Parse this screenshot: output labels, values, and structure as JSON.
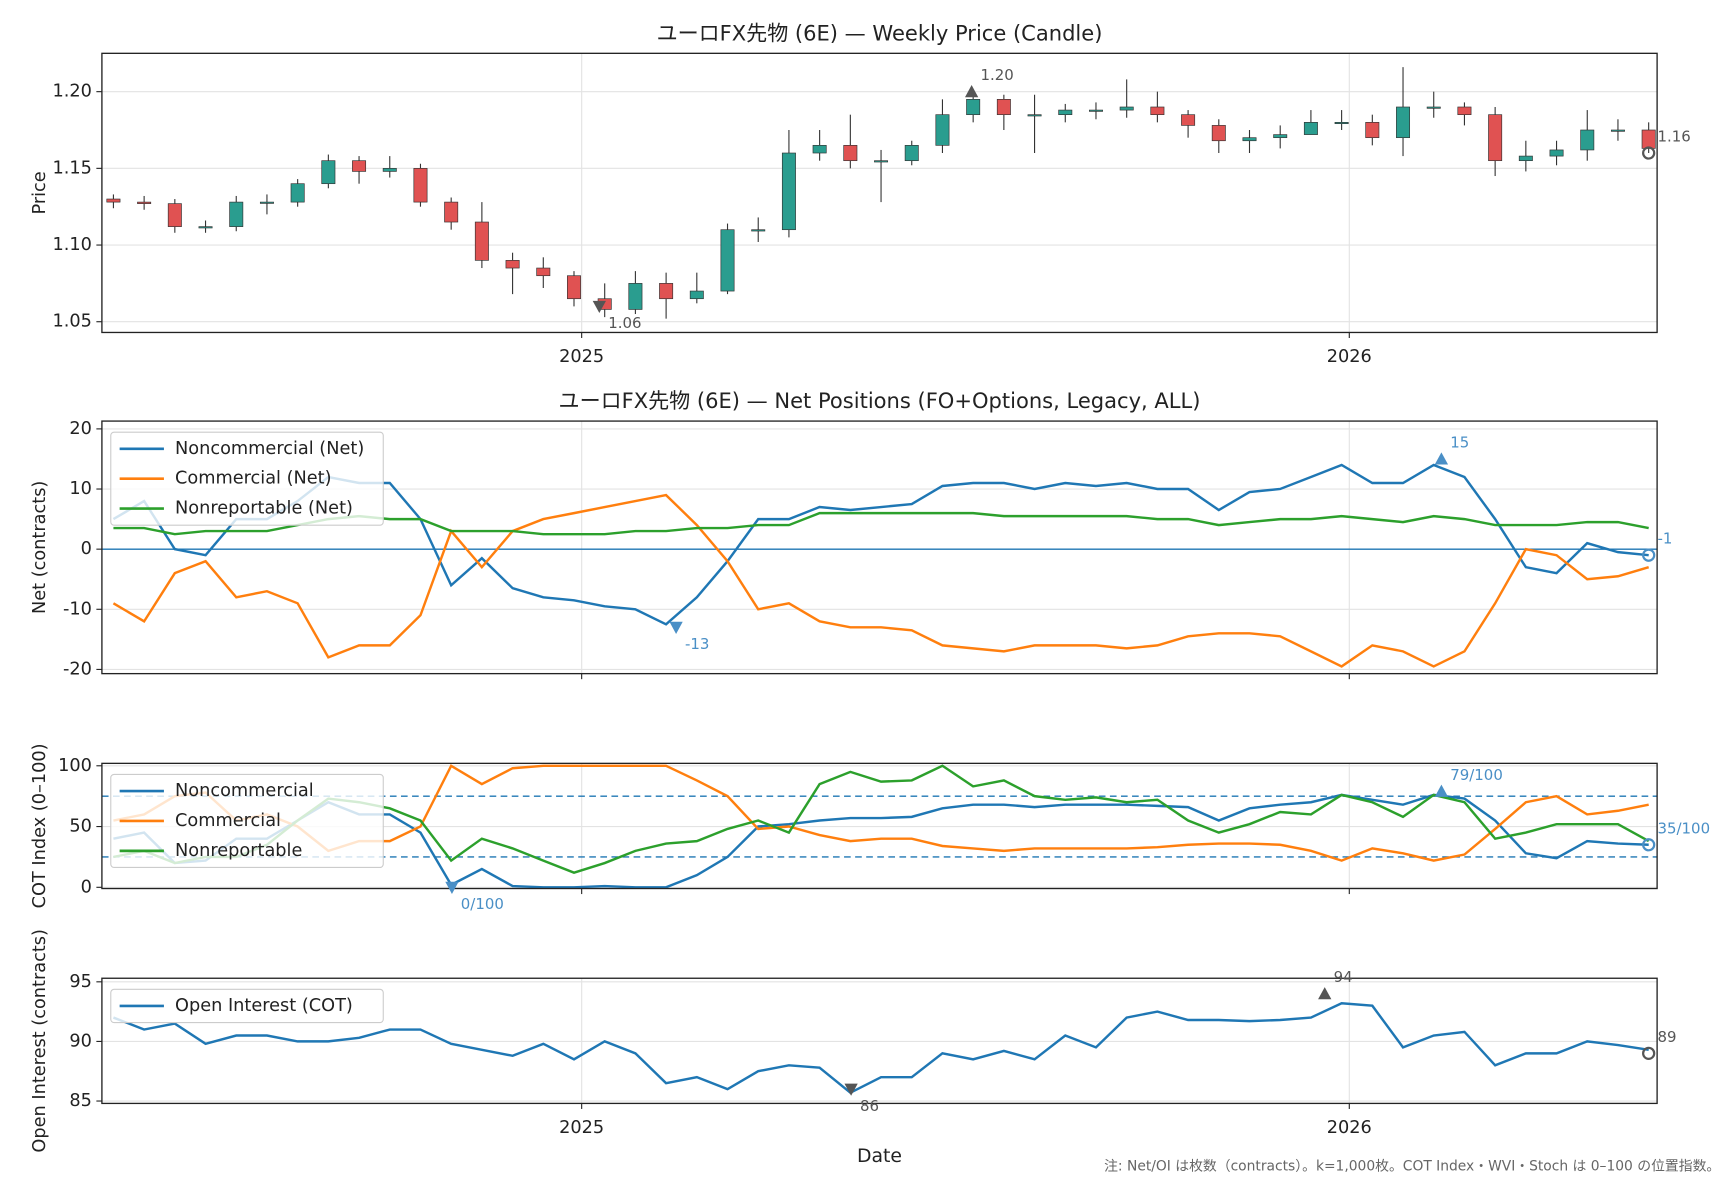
{
  "chart_data": [
    {
      "type": "candlestick",
      "title": "ユーロFX先物 (6E) — Weekly Price (Candle)",
      "y_label": "Price",
      "x": [
        2024.39,
        2024.43,
        2024.47,
        2024.51,
        2024.55,
        2024.59,
        2024.63,
        2024.67,
        2024.71,
        2024.75,
        2024.79,
        2024.83,
        2024.87,
        2024.91,
        2024.95,
        2024.99,
        2025.03,
        2025.07,
        2025.11,
        2025.15,
        2025.19,
        2025.23,
        2025.27,
        2025.31,
        2025.35,
        2025.39,
        2025.43,
        2025.47,
        2025.51,
        2025.55,
        2025.59,
        2025.63,
        2025.67,
        2025.71,
        2025.75,
        2025.79,
        2025.83,
        2025.87,
        2025.91,
        2025.95,
        2025.99,
        2026.03,
        2026.07,
        2026.11,
        2026.15,
        2026.19,
        2026.23,
        2026.27,
        2026.31,
        2026.35,
        2026.39
      ],
      "open": [
        1.13,
        1.128,
        1.127,
        1.112,
        1.112,
        1.128,
        1.128,
        1.14,
        1.155,
        1.148,
        1.15,
        1.128,
        1.115,
        1.09,
        1.085,
        1.08,
        1.065,
        1.058,
        1.075,
        1.065,
        1.07,
        1.11,
        1.11,
        1.16,
        1.165,
        1.155,
        1.155,
        1.165,
        1.185,
        1.195,
        1.185,
        1.185,
        1.188,
        1.188,
        1.19,
        1.185,
        1.178,
        1.168,
        1.17,
        1.172,
        1.18,
        1.18,
        1.17,
        1.19,
        1.19,
        1.185,
        1.155,
        1.158,
        1.162,
        1.175,
        1.175
      ],
      "high": [
        1.133,
        1.132,
        1.13,
        1.116,
        1.132,
        1.133,
        1.143,
        1.159,
        1.158,
        1.158,
        1.153,
        1.131,
        1.128,
        1.095,
        1.092,
        1.083,
        1.075,
        1.083,
        1.082,
        1.082,
        1.114,
        1.118,
        1.175,
        1.175,
        1.185,
        1.162,
        1.168,
        1.195,
        1.2,
        1.198,
        1.198,
        1.192,
        1.193,
        1.208,
        1.2,
        1.188,
        1.182,
        1.175,
        1.178,
        1.188,
        1.188,
        1.185,
        1.216,
        1.2,
        1.193,
        1.19,
        1.168,
        1.168,
        1.188,
        1.182,
        1.18
      ],
      "low": [
        1.124,
        1.123,
        1.108,
        1.108,
        1.109,
        1.12,
        1.125,
        1.137,
        1.14,
        1.144,
        1.125,
        1.11,
        1.085,
        1.068,
        1.072,
        1.06,
        1.053,
        1.055,
        1.052,
        1.062,
        1.068,
        1.102,
        1.105,
        1.155,
        1.15,
        1.128,
        1.152,
        1.16,
        1.18,
        1.175,
        1.16,
        1.18,
        1.182,
        1.183,
        1.18,
        1.17,
        1.16,
        1.16,
        1.163,
        1.172,
        1.175,
        1.165,
        1.158,
        1.183,
        1.178,
        1.145,
        1.148,
        1.152,
        1.155,
        1.168,
        1.16
      ],
      "close": [
        1.128,
        1.127,
        1.112,
        1.112,
        1.128,
        1.128,
        1.14,
        1.155,
        1.148,
        1.15,
        1.128,
        1.115,
        1.09,
        1.085,
        1.08,
        1.065,
        1.058,
        1.075,
        1.065,
        1.07,
        1.11,
        1.11,
        1.16,
        1.165,
        1.155,
        1.155,
        1.165,
        1.185,
        1.195,
        1.185,
        1.185,
        1.188,
        1.188,
        1.19,
        1.185,
        1.178,
        1.168,
        1.17,
        1.172,
        1.18,
        1.18,
        1.17,
        1.19,
        1.19,
        1.185,
        1.155,
        1.158,
        1.162,
        1.175,
        1.175,
        1.163
      ],
      "up_color": "#2a9d8f",
      "down_color": "#e05252",
      "xlim": [
        2024.375,
        2026.401
      ],
      "xticks": [
        2025,
        2026
      ],
      "ylim": [
        1.043,
        1.225
      ],
      "yticks": [
        1.05,
        {
          "value": 1.1,
          "label": "1.10"
        },
        1.15,
        {
          "value": 1.2,
          "label": "1.20"
        }
      ],
      "grid": true,
      "annotation_color": "#555555",
      "annotations": [
        {
          "x": 2025.508,
          "value": 1.2,
          "label": "1.20",
          "marker": "up"
        },
        {
          "x": 2025.023,
          "value": 1.06,
          "label": "1.06",
          "marker": "down"
        },
        {
          "x": 2026.39,
          "value": 1.16,
          "label": "1.16",
          "marker": "last"
        }
      ]
    },
    {
      "type": "line",
      "title": "ユーロFX先物 (6E) — Net Positions (FO+Options, Legacy, ALL)",
      "y_label": "Net (contracts)",
      "x": [
        2024.39,
        2024.43,
        2024.47,
        2024.51,
        2024.55,
        2024.59,
        2024.63,
        2024.67,
        2024.71,
        2024.75,
        2024.79,
        2024.83,
        2024.87,
        2024.91,
        2024.95,
        2024.99,
        2025.03,
        2025.07,
        2025.11,
        2025.15,
        2025.19,
        2025.23,
        2025.27,
        2025.31,
        2025.35,
        2025.39,
        2025.43,
        2025.47,
        2025.51,
        2025.55,
        2025.59,
        2025.63,
        2025.67,
        2025.71,
        2025.75,
        2025.79,
        2025.83,
        2025.87,
        2025.91,
        2025.95,
        2025.99,
        2026.03,
        2026.07,
        2026.11,
        2026.15,
        2026.19,
        2026.23,
        2026.27,
        2026.31,
        2026.35,
        2026.39
      ],
      "series": [
        {
          "name": "Noncommercial (Net)",
          "color": "#1f77b4",
          "values": [
            5,
            8,
            0,
            -1,
            5,
            5,
            8,
            12,
            11,
            11,
            5,
            -6,
            -1.5,
            -6.5,
            -8,
            -8.5,
            -9.5,
            -10,
            -12.5,
            -8,
            -2,
            5,
            5,
            7,
            6.5,
            7,
            7.5,
            10.5,
            11,
            11,
            10,
            11,
            10.5,
            11,
            10,
            10,
            6.5,
            9.5,
            10,
            12,
            14,
            11,
            11,
            14,
            12,
            5,
            -3,
            -4,
            1,
            -0.5,
            -1
          ]
        },
        {
          "name": "Commercial (Net)",
          "color": "#ff7f0e",
          "values": [
            -9,
            -12,
            -4,
            -2,
            -8,
            -7,
            -9,
            -18,
            -16,
            -16,
            -11,
            3,
            -3,
            3,
            5,
            6,
            7,
            8,
            9,
            4,
            -2,
            -10,
            -9,
            -12,
            -13,
            -13,
            -13.5,
            -16,
            -16.5,
            -17,
            -16,
            -16,
            -16,
            -16.5,
            -16,
            -14.5,
            -14,
            -14,
            -14.5,
            -17,
            -19.5,
            -16,
            -17,
            -19.5,
            -17,
            -9,
            0,
            -1,
            -5,
            -4.5,
            -3
          ]
        },
        {
          "name": "Nonreportable (Net)",
          "color": "#2ca02c",
          "values": [
            3.5,
            3.5,
            2.5,
            3,
            3,
            3,
            4,
            5,
            5.5,
            5,
            5,
            3,
            3,
            3,
            2.5,
            2.5,
            2.5,
            3,
            3,
            3.5,
            3.5,
            4,
            4,
            6,
            6,
            6,
            6,
            6,
            6,
            5.5,
            5.5,
            5.5,
            5.5,
            5.5,
            5,
            5,
            4,
            4.5,
            5,
            5,
            5.5,
            5,
            4.5,
            5.5,
            5,
            4,
            4,
            4,
            4.5,
            4.5,
            3.5
          ]
        }
      ],
      "xlim": [
        2024.375,
        2026.401
      ],
      "xticks": [
        2025,
        2026
      ],
      "xtick_labels": false,
      "ylim": [
        -20.7,
        21.3
      ],
      "yticks": [
        -20,
        -10,
        0,
        10,
        20
      ],
      "grid": true,
      "hlines": [
        0
      ],
      "hline_style": "solid",
      "hline_color": "#1f77b4",
      "legend": "upper left",
      "annotation_color": "#4a8fc6",
      "annotations": [
        {
          "x": 2026.12,
          "value": 15,
          "label": "15",
          "marker": "up"
        },
        {
          "x": 2025.123,
          "value": -13,
          "label": "-13",
          "marker": "down"
        },
        {
          "x": 2026.39,
          "value": -1,
          "label": "-1",
          "marker": "last"
        }
      ]
    },
    {
      "type": "line",
      "y_label": "COT Index (0–100)",
      "x": [
        2024.39,
        2024.43,
        2024.47,
        2024.51,
        2024.55,
        2024.59,
        2024.63,
        2024.67,
        2024.71,
        2024.75,
        2024.79,
        2024.83,
        2024.87,
        2024.91,
        2024.95,
        2024.99,
        2025.03,
        2025.07,
        2025.11,
        2025.15,
        2025.19,
        2025.23,
        2025.27,
        2025.31,
        2025.35,
        2025.39,
        2025.43,
        2025.47,
        2025.51,
        2025.55,
        2025.59,
        2025.63,
        2025.67,
        2025.71,
        2025.75,
        2025.79,
        2025.83,
        2025.87,
        2025.91,
        2025.95,
        2025.99,
        2026.03,
        2026.07,
        2026.11,
        2026.15,
        2026.19,
        2026.23,
        2026.27,
        2026.31,
        2026.35,
        2026.39
      ],
      "series": [
        {
          "name": "Noncommercial",
          "color": "#1f77b4",
          "values": [
            40,
            45,
            20,
            22,
            40,
            40,
            55,
            70,
            60,
            60,
            45,
            2,
            15,
            1,
            0,
            0,
            1,
            0,
            0,
            10,
            25,
            50,
            52,
            55,
            57,
            57,
            58,
            65,
            68,
            68,
            66,
            68,
            68,
            68,
            67,
            66,
            55,
            65,
            68,
            70,
            76,
            72,
            68,
            76,
            73,
            55,
            28,
            24,
            38,
            36,
            35
          ]
        },
        {
          "name": "Commercial",
          "color": "#ff7f0e",
          "values": [
            55,
            60,
            75,
            78,
            55,
            60,
            50,
            30,
            38,
            38,
            50,
            100,
            85,
            98,
            100,
            100,
            100,
            100,
            100,
            88,
            75,
            48,
            50,
            43,
            38,
            40,
            40,
            34,
            32,
            30,
            32,
            32,
            32,
            32,
            33,
            35,
            36,
            36,
            35,
            30,
            22,
            32,
            28,
            22,
            27,
            48,
            70,
            75,
            60,
            63,
            68
          ]
        },
        {
          "name": "Nonreportable",
          "color": "#2ca02c",
          "values": [
            25,
            30,
            20,
            25,
            25,
            35,
            55,
            73,
            70,
            65,
            55,
            22,
            40,
            32,
            22,
            12,
            20,
            30,
            36,
            38,
            48,
            55,
            45,
            85,
            95,
            87,
            88,
            100,
            83,
            88,
            75,
            72,
            74,
            70,
            72,
            55,
            45,
            52,
            62,
            60,
            76,
            70,
            58,
            76,
            70,
            40,
            45,
            52,
            52,
            52,
            38
          ]
        }
      ],
      "xlim": [
        2024.375,
        2026.401
      ],
      "xticks": [
        2025,
        2026
      ],
      "xtick_labels": false,
      "ylim": [
        -1,
        102
      ],
      "yticks": [
        0,
        50,
        100
      ],
      "grid": true,
      "hlines": [
        25,
        75
      ],
      "hline_style": "dashed",
      "hline_color": "#1f77b4",
      "legend": "upper left",
      "annotation_color": "#4a8fc6",
      "annotations": [
        {
          "x": 2026.12,
          "value": 79,
          "label": "79/100",
          "marker": "up"
        },
        {
          "x": 2024.831,
          "value": 0,
          "label": "0/100",
          "marker": "down"
        },
        {
          "x": 2026.39,
          "value": 35,
          "label": "35/100",
          "marker": "last"
        }
      ]
    },
    {
      "type": "line",
      "y_label": "Open Interest (contracts)",
      "x_label": "Date",
      "x": [
        2024.39,
        2024.43,
        2024.47,
        2024.51,
        2024.55,
        2024.59,
        2024.63,
        2024.67,
        2024.71,
        2024.75,
        2024.79,
        2024.83,
        2024.87,
        2024.91,
        2024.95,
        2024.99,
        2025.03,
        2025.07,
        2025.11,
        2025.15,
        2025.19,
        2025.23,
        2025.27,
        2025.31,
        2025.35,
        2025.39,
        2025.43,
        2025.47,
        2025.51,
        2025.55,
        2025.59,
        2025.63,
        2025.67,
        2025.71,
        2025.75,
        2025.79,
        2025.83,
        2025.87,
        2025.91,
        2025.95,
        2025.99,
        2026.03,
        2026.07,
        2026.11,
        2026.15,
        2026.19,
        2026.23,
        2026.27,
        2026.31,
        2026.35,
        2026.39
      ],
      "series": [
        {
          "name": "Open Interest (COT)",
          "color": "#1f77b4",
          "values": [
            92,
            91,
            91.5,
            89.8,
            90.5,
            90.5,
            90,
            90,
            90.3,
            91,
            91,
            89.8,
            89.3,
            88.8,
            89.8,
            88.5,
            90,
            89,
            86.5,
            87,
            86,
            87.5,
            88,
            87.8,
            85.7,
            87,
            87,
            89,
            88.5,
            89.2,
            88.5,
            90.5,
            89.5,
            92,
            92.5,
            91.8,
            91.8,
            91.7,
            91.8,
            92,
            93.2,
            93,
            89.5,
            90.5,
            90.8,
            88,
            89,
            89,
            90,
            89.7,
            89.3
          ]
        }
      ],
      "xlim": [
        2024.375,
        2026.401
      ],
      "xticks": [
        2025,
        2026
      ],
      "ylim": [
        84.8,
        95.3
      ],
      "yticks": [
        85,
        90,
        95
      ],
      "grid": true,
      "legend": "upper left",
      "annotation_color": "#555555",
      "annotations": [
        {
          "x": 2025.968,
          "value": 94,
          "label": "94",
          "marker": "up"
        },
        {
          "x": 2025.351,
          "value": 86,
          "label": "86",
          "marker": "down"
        },
        {
          "x": 2026.39,
          "value": 89,
          "label": "89",
          "marker": "last"
        }
      ]
    }
  ],
  "note": "注: Net/OI は枚数（contracts）。k=1,000枚。COT Index・WVI・Stoch は 0–100 の位置指数。"
}
